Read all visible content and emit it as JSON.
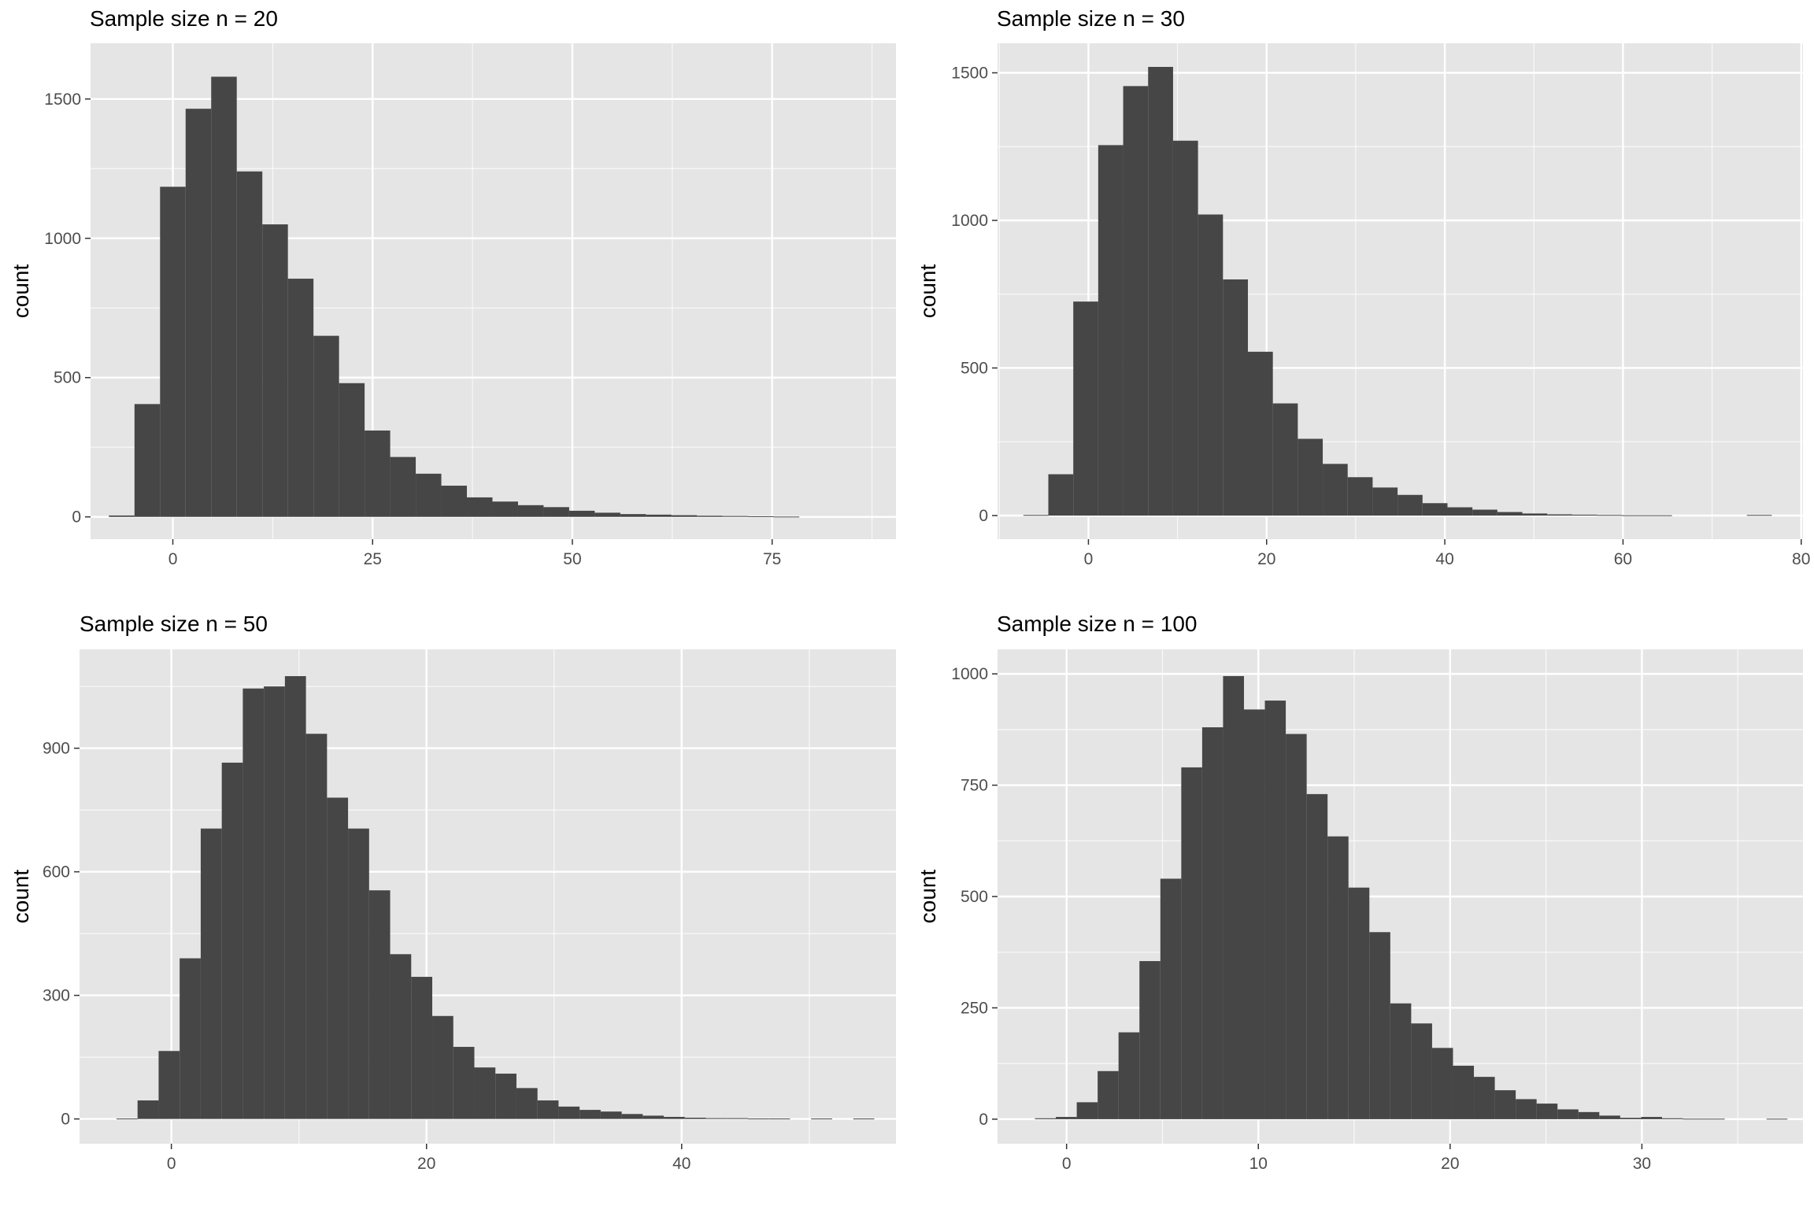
{
  "colors": {
    "panel_background": "#e5e5e5",
    "grid_major": "#ffffff",
    "bar_fill": "#464646",
    "tick_text": "#4d4d4d",
    "title_text": "#000000"
  },
  "chart_data": [
    {
      "type": "bar",
      "subtype": "histogram",
      "title": "Sample size n = 20",
      "xlabel": "",
      "ylabel": "count",
      "grid": true,
      "legend": "none",
      "xlim": [
        -10.3,
        90.5
      ],
      "ylim": [
        -80,
        1700
      ],
      "xticks": [
        0,
        25,
        50,
        75
      ],
      "yticks": [
        0,
        500,
        1000,
        1500
      ],
      "binwidth": 3.2,
      "first_bin_left": -8.0,
      "counts": [
        5,
        405,
        1185,
        1465,
        1580,
        1240,
        1050,
        855,
        650,
        480,
        310,
        215,
        155,
        112,
        70,
        55,
        42,
        35,
        22,
        15,
        10,
        8,
        6,
        4,
        3,
        2,
        1,
        0,
        0,
        0
      ]
    },
    {
      "type": "bar",
      "subtype": "histogram",
      "title": "Sample size n = 30",
      "xlabel": "",
      "ylabel": "count",
      "grid": true,
      "legend": "none",
      "xlim": [
        -10.2,
        80.2
      ],
      "ylim": [
        -80,
        1600
      ],
      "xticks": [
        0,
        20,
        40,
        60,
        80
      ],
      "yticks": [
        0,
        500,
        1000,
        1500
      ],
      "binwidth": 2.8,
      "first_bin_left": -7.3,
      "counts": [
        2,
        140,
        725,
        1255,
        1455,
        1520,
        1270,
        1020,
        800,
        555,
        380,
        260,
        175,
        130,
        95,
        70,
        42,
        28,
        20,
        12,
        7,
        4,
        3,
        2,
        1,
        1,
        0,
        0,
        0,
        2
      ]
    },
    {
      "type": "bar",
      "subtype": "histogram",
      "title": "Sample size n = 50",
      "xlabel": "",
      "ylabel": "count",
      "grid": true,
      "legend": "none",
      "xlim": [
        -7.2,
        56.8
      ],
      "ylim": [
        -60,
        1140
      ],
      "xticks": [
        0,
        20,
        40
      ],
      "yticks": [
        0,
        300,
        600,
        900
      ],
      "binwidth": 1.65,
      "first_bin_left": -4.3,
      "counts": [
        1,
        45,
        165,
        390,
        705,
        865,
        1045,
        1050,
        1075,
        935,
        780,
        705,
        555,
        400,
        345,
        250,
        175,
        125,
        110,
        75,
        45,
        30,
        22,
        18,
        12,
        8,
        5,
        3,
        2,
        2,
        1,
        1,
        0,
        1,
        0,
        1
      ]
    },
    {
      "type": "bar",
      "subtype": "histogram",
      "title": "Sample size n = 100",
      "xlabel": "",
      "ylabel": "count",
      "grid": true,
      "legend": "none",
      "xlim": [
        -3.6,
        38.4
      ],
      "ylim": [
        -55,
        1055
      ],
      "xticks": [
        0,
        10,
        20,
        30
      ],
      "yticks": [
        0,
        250,
        500,
        750,
        1000
      ],
      "binwidth": 1.09,
      "first_bin_left": -1.65,
      "counts": [
        2,
        5,
        38,
        108,
        195,
        355,
        540,
        790,
        880,
        995,
        920,
        940,
        865,
        730,
        635,
        520,
        420,
        260,
        215,
        160,
        120,
        95,
        65,
        45,
        35,
        22,
        16,
        8,
        3,
        5,
        2,
        1,
        1,
        0,
        0,
        1
      ]
    }
  ]
}
